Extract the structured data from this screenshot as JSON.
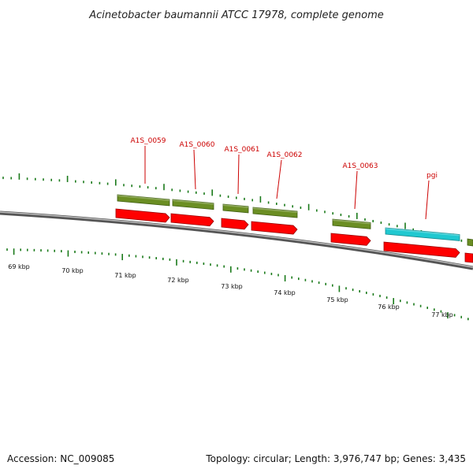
{
  "title": "Acinetobacter baumannii ATCC 17978, complete genome",
  "footer": {
    "accession": "Accession: NC_009085",
    "topology": "Topology: circular; Length: 3,976,747 bp; Genes: 3,435"
  },
  "colors": {
    "backbone": "#8a8a8a",
    "cds_feature": "#6b8e23",
    "gene_arrow": "#ff0000",
    "highlight_feature": "#20c8d0",
    "label": "#cc0000",
    "tick": "#1a7a1a"
  },
  "scale_labels": [
    "69 kbp",
    "70 kbp",
    "71 kbp",
    "72 kbp",
    "73 kbp",
    "74 kbp",
    "75 kbp",
    "76 kbp",
    "77 kbp"
  ],
  "genes": [
    {
      "label": "A1S_0059",
      "type": "cds"
    },
    {
      "label": "A1S_0060",
      "type": "cds"
    },
    {
      "label": "A1S_0061",
      "type": "cds"
    },
    {
      "label": "A1S_0062",
      "type": "cds"
    },
    {
      "label": "A1S_0063",
      "type": "cds"
    },
    {
      "label": "pgi",
      "type": "highlight"
    }
  ]
}
